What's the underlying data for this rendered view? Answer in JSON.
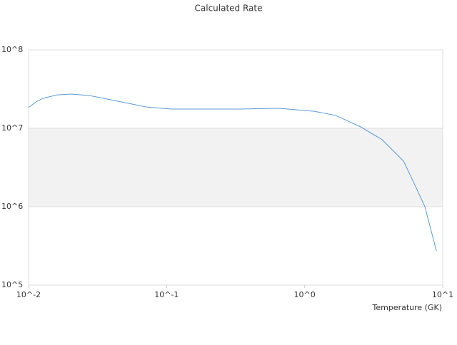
{
  "chart_data": {
    "type": "line",
    "title": "Calculated Rate",
    "x_label": "Temperature (GK)",
    "x_log": true,
    "y_log": true,
    "alternate_bands": true,
    "band_color": "#f2f2f2",
    "xlim": [
      0.01,
      10
    ],
    "ylim": [
      100000,
      100000000
    ],
    "xticks": [
      {
        "value": 0.01,
        "label": "10^-2"
      },
      {
        "value": 0.1,
        "label": "10^-1"
      },
      {
        "value": 1,
        "label": "10^0"
      },
      {
        "value": 10,
        "label": "10^1"
      }
    ],
    "yticks": [
      {
        "value": 100000,
        "label": "10^5"
      },
      {
        "value": 1000000,
        "label": "10^6"
      },
      {
        "value": 10000000,
        "label": "10^7"
      },
      {
        "value": 100000000,
        "label": "10^8"
      }
    ],
    "x": [
      0.01,
      0.0113,
      0.0127,
      0.0161,
      0.0204,
      0.0275,
      0.0394,
      0.053,
      0.0714,
      0.108,
      0.174,
      0.336,
      0.647,
      1.17,
      1.68,
      2.55,
      3.64,
      5.2,
      6.37,
      7.43,
      9.0
    ],
    "series": [
      {
        "color": "#5b9bd5",
        "values": [
          18400000,
          21700000,
          24100000,
          26700000,
          27300000,
          26200000,
          23100000,
          20800000,
          18700000,
          17600000,
          17600000,
          17600000,
          18000000,
          16500000,
          14600000,
          10400000,
          7160000,
          3820000,
          1800000,
          1000000,
          273000
        ]
      }
    ]
  }
}
